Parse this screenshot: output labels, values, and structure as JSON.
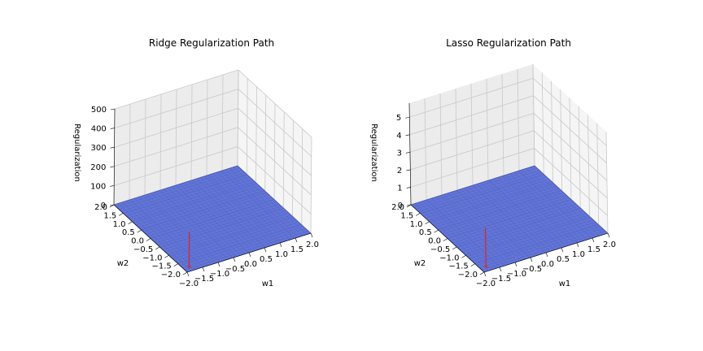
{
  "chart_data": [
    {
      "type": "surface3d",
      "title": "Ridge Regularization Path",
      "xlabel": "w1",
      "ylabel": "w2",
      "zlabel": "Regularization",
      "xlim": [
        -2.0,
        2.0
      ],
      "ylim": [
        -2.0,
        2.0
      ],
      "zlim": [
        0,
        500
      ],
      "x_ticks": [
        "−2.0",
        "−1.5",
        "−1.0",
        "−0.5",
        "0.0",
        "0.5",
        "1.0",
        "1.5",
        "2.0"
      ],
      "y_ticks": [
        "−2.0",
        "−1.5",
        "−1.0",
        "−0.5",
        "0.0",
        "0.5",
        "1.0",
        "1.5",
        "2.0"
      ],
      "z_ticks": [
        "0",
        "100",
        "200",
        "300",
        "400",
        "500"
      ],
      "z_tick_values": [
        0,
        100,
        200,
        300,
        400,
        500
      ],
      "surface": {
        "z": 0,
        "color": "#4a5fd0"
      },
      "path": {
        "color": "#d62728",
        "start": [
          -1.85,
          -1.85,
          190
        ],
        "end": [
          -1.85,
          -1.85,
          0
        ]
      },
      "grid": true
    },
    {
      "type": "surface3d",
      "title": "Lasso Regularization Path",
      "xlabel": "w1",
      "ylabel": "w2",
      "zlabel": "Regularization",
      "xlim": [
        -2.0,
        2.0
      ],
      "ylim": [
        -2.0,
        2.0
      ],
      "zlim": [
        0,
        5.8
      ],
      "x_ticks": [
        "−2.0",
        "−1.5",
        "−1.0",
        "−0.5",
        "0.0",
        "0.5",
        "1.0",
        "1.5",
        "2.0"
      ],
      "y_ticks": [
        "−2.0",
        "−1.5",
        "−1.0",
        "−0.5",
        "0.0",
        "0.5",
        "1.0",
        "1.5",
        "2.0"
      ],
      "z_ticks": [
        "0",
        "1",
        "2",
        "3",
        "4",
        "5"
      ],
      "z_tick_values": [
        0,
        1,
        2,
        3,
        4,
        5
      ],
      "surface": {
        "z": 0,
        "color": "#4a5fd0"
      },
      "path": {
        "color": "#d62728",
        "start": [
          -1.85,
          -1.85,
          2.3
        ],
        "end": [
          -1.85,
          -1.85,
          0
        ]
      },
      "grid": true
    }
  ]
}
